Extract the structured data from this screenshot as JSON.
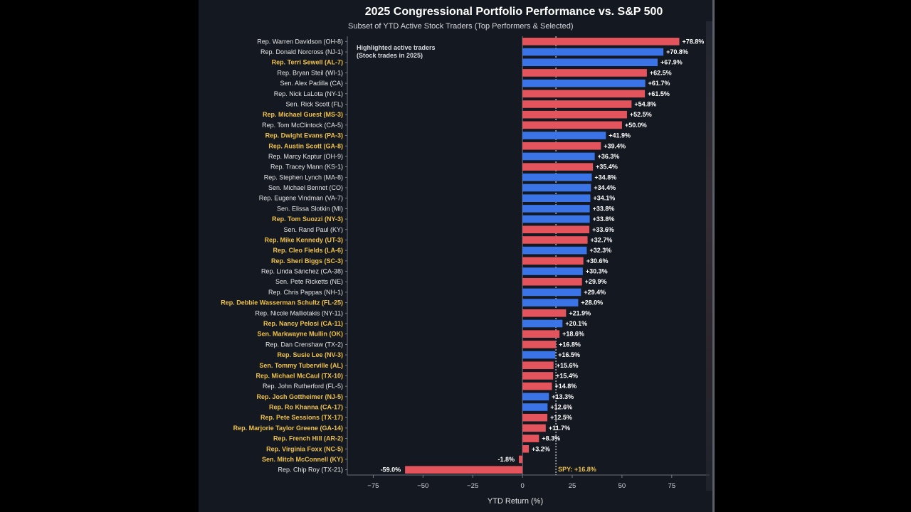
{
  "colors": {
    "background": "#141821",
    "republican": "#e4545c",
    "democrat": "#3a74e6",
    "highlight_label": "#f0c24a",
    "benchmark_line": "#ffffff"
  },
  "chart_data": {
    "type": "bar",
    "orientation": "horizontal",
    "title": "2025 Congressional Portfolio Performance vs. S&P 500",
    "subtitle": "Subset of YTD Active Stock Traders (Top Performers & Selected)",
    "xlabel": "YTD Return (%)",
    "xlim": [
      -88,
      94
    ],
    "xticks": [
      -75,
      -50,
      -25,
      0,
      25,
      50,
      75
    ],
    "grid": false,
    "annotation": "Highlighted active traders\n(Stock trades in 2025)",
    "benchmark": {
      "label": "SPY: +16.8%",
      "value": 16.8
    },
    "categories": [
      "Rep. Warren Davidson (OH-8)",
      "Rep. Donald Norcross (NJ-1)",
      "Rep. Terri Sewell (AL-7)",
      "Rep. Bryan Steil (WI-1)",
      "Sen. Alex Padilla (CA)",
      "Rep. Nick LaLota (NY-1)",
      "Sen. Rick Scott (FL)",
      "Rep. Michael Guest (MS-3)",
      "Rep. Tom McClintock (CA-5)",
      "Rep. Dwight Evans (PA-3)",
      "Rep. Austin Scott (GA-8)",
      "Rep. Marcy Kaptur (OH-9)",
      "Rep. Tracey Mann (KS-1)",
      "Rep. Stephen Lynch (MA-8)",
      "Sen. Michael Bennet (CO)",
      "Rep. Eugene Vindman (VA-7)",
      "Sen. Elissa Slotkin (MI)",
      "Rep. Tom Suozzi (NY-3)",
      "Sen. Rand Paul (KY)",
      "Rep. Mike Kennedy (UT-3)",
      "Rep. Cleo Fields (LA-6)",
      "Rep. Sheri Biggs (SC-3)",
      "Rep. Linda Sánchez (CA-38)",
      "Sen. Pete Ricketts (NE)",
      "Rep. Chris Pappas (NH-1)",
      "Rep. Debbie Wasserman Schultz (FL-25)",
      "Rep. Nicole Malliotakis (NY-11)",
      "Rep. Nancy Pelosi (CA-11)",
      "Sen. Markwayne Mullin (OK)",
      "Rep. Dan Crenshaw (TX-2)",
      "Rep. Susie Lee (NV-3)",
      "Sen. Tommy Tuberville (AL)",
      "Rep. Michael McCaul (TX-10)",
      "Rep. John Rutherford (FL-5)",
      "Rep. Josh Gottheimer (NJ-5)",
      "Rep. Ro Khanna (CA-17)",
      "Rep. Pete Sessions (TX-17)",
      "Rep. Marjorie Taylor Greene (GA-14)",
      "Rep. French Hill (AR-2)",
      "Rep. Virginia Foxx (NC-5)",
      "Sen. Mitch McConnell (KY)",
      "Rep. Chip Roy (TX-21)"
    ],
    "values": [
      78.8,
      70.8,
      67.9,
      62.5,
      61.7,
      61.5,
      54.8,
      52.5,
      50.0,
      41.9,
      39.4,
      36.3,
      35.4,
      34.8,
      34.4,
      34.1,
      33.8,
      33.8,
      33.6,
      32.7,
      32.3,
      30.6,
      30.3,
      29.9,
      29.4,
      28.0,
      21.9,
      20.1,
      18.6,
      16.8,
      16.5,
      15.6,
      15.4,
      14.8,
      13.3,
      12.6,
      12.5,
      11.7,
      8.3,
      3.2,
      -1.8,
      -59.0
    ],
    "value_labels": [
      "+78.8%",
      "+70.8%",
      "+67.9%",
      "+62.5%",
      "+61.7%",
      "+61.5%",
      "+54.8%",
      "+52.5%",
      "+50.0%",
      "+41.9%",
      "+39.4%",
      "+36.3%",
      "+35.4%",
      "+34.8%",
      "+34.4%",
      "+34.1%",
      "+33.8%",
      "+33.8%",
      "+33.6%",
      "+32.7%",
      "+32.3%",
      "+30.6%",
      "+30.3%",
      "+29.9%",
      "+29.4%",
      "+28.0%",
      "+21.9%",
      "+20.1%",
      "+18.6%",
      "+16.8%",
      "+16.5%",
      "+15.6%",
      "+15.4%",
      "+14.8%",
      "+13.3%",
      "+12.6%",
      "+12.5%",
      "+11.7%",
      "+8.3%",
      "+3.2%",
      "-1.8%",
      "-59.0%"
    ],
    "party": [
      "R",
      "D",
      "D",
      "R",
      "D",
      "R",
      "R",
      "R",
      "R",
      "D",
      "R",
      "D",
      "R",
      "D",
      "D",
      "D",
      "D",
      "D",
      "R",
      "R",
      "D",
      "R",
      "D",
      "R",
      "D",
      "D",
      "R",
      "D",
      "R",
      "R",
      "D",
      "R",
      "R",
      "R",
      "D",
      "D",
      "R",
      "R",
      "R",
      "R",
      "R",
      "R"
    ],
    "highlighted": [
      false,
      false,
      true,
      false,
      false,
      false,
      false,
      true,
      false,
      true,
      true,
      false,
      false,
      false,
      false,
      false,
      false,
      true,
      false,
      true,
      true,
      true,
      false,
      false,
      false,
      true,
      false,
      true,
      true,
      false,
      true,
      true,
      true,
      false,
      true,
      true,
      true,
      true,
      true,
      true,
      true,
      false
    ]
  }
}
